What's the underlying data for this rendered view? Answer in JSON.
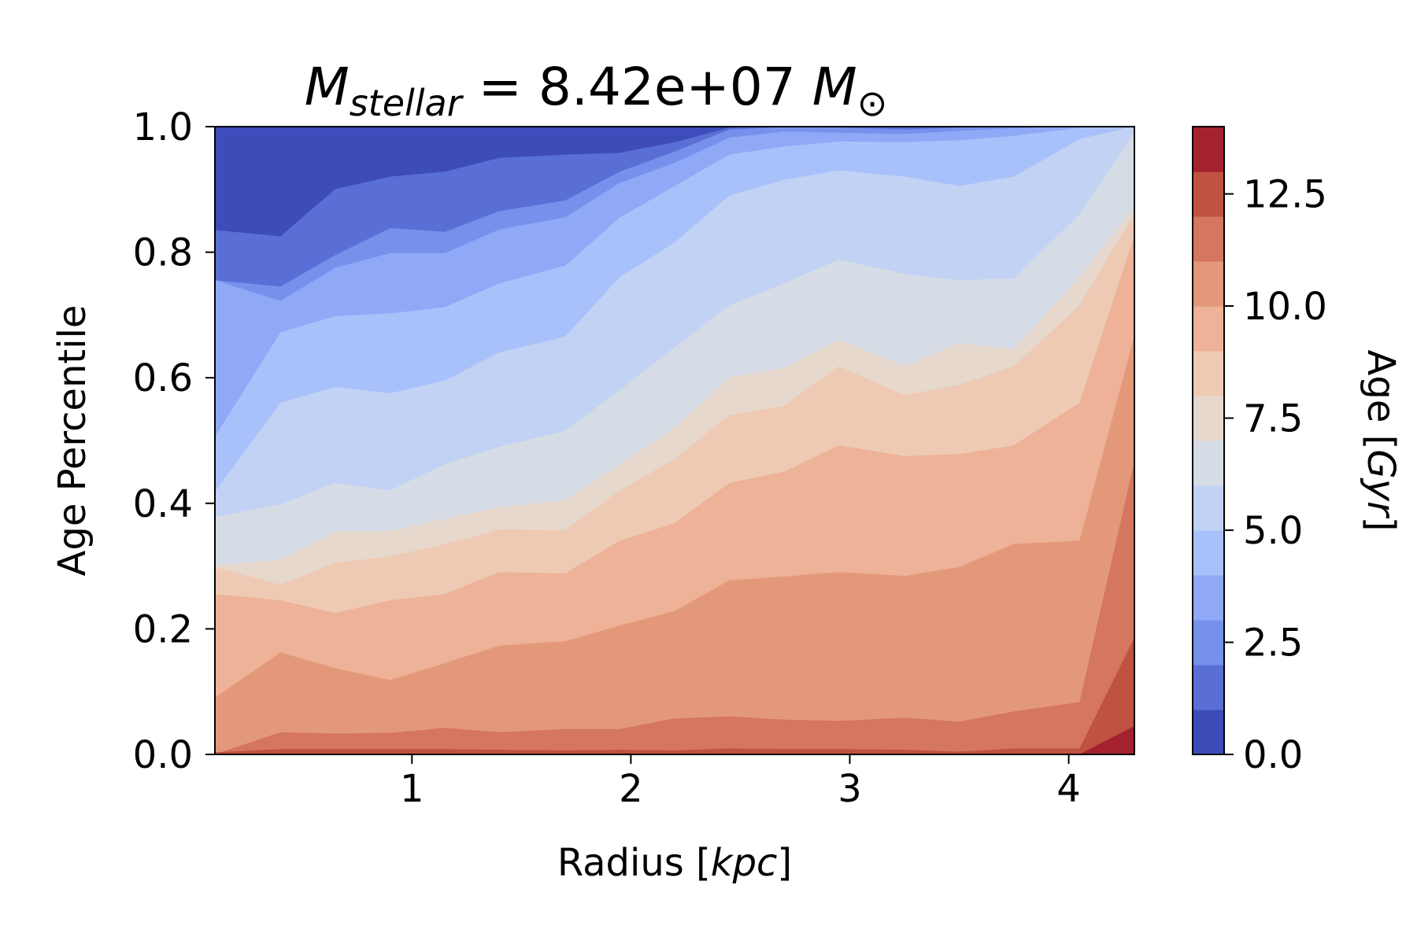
{
  "chart_data": {
    "type": "contour",
    "title": {
      "symbol": "M",
      "subscript": "stellar",
      "equals": " = ",
      "value": "8.42e+07",
      "unit_symbol": "M",
      "unit_subscript": "⊙"
    },
    "xlabel": {
      "main": "Radius [",
      "italic": "kpc",
      "close": "]"
    },
    "ylabel": "Age Percentile",
    "colorbar_label": {
      "main": "Age [",
      "italic": "Gyr",
      "close": "]"
    },
    "xlim": [
      0.1,
      4.3
    ],
    "ylim": [
      0.0,
      1.0
    ],
    "xticks": [
      1,
      2,
      3,
      4
    ],
    "xtick_labels": [
      "1",
      "2",
      "3",
      "4"
    ],
    "yticks": [
      0.0,
      0.2,
      0.4,
      0.6,
      0.8,
      1.0
    ],
    "ytick_labels": [
      "0.0",
      "0.2",
      "0.4",
      "0.6",
      "0.8",
      "1.0"
    ],
    "colorbar_ticks": [
      0.0,
      2.5,
      5.0,
      7.5,
      10.0,
      12.5
    ],
    "colorbar_tick_labels": [
      "0.0",
      "2.5",
      "5.0",
      "7.5",
      "10.0",
      "12.5"
    ],
    "colorbar_range": [
      0.0,
      14.0
    ],
    "age_levels": [
      0,
      1,
      2,
      3,
      4,
      5,
      6,
      7,
      8,
      9,
      10,
      11,
      12,
      13,
      14
    ],
    "level_colors": [
      "#3d4cb8",
      "#5a6fd6",
      "#7691eb",
      "#8fa9f6",
      "#a9c1fb",
      "#c1d2f4",
      "#d6dce6",
      "#e6d8cc",
      "#eecab4",
      "#edb297",
      "#e4987a",
      "#d57660",
      "#c05242",
      "#a4222f"
    ],
    "x": [
      0.1,
      0.4,
      0.65,
      0.9,
      1.15,
      1.4,
      1.7,
      1.95,
      2.2,
      2.45,
      2.7,
      2.95,
      3.25,
      3.5,
      3.75,
      4.05,
      4.3
    ],
    "contour_boundaries": [
      {
        "age": 12,
        "percentile": [
          0.0,
          0.0,
          0.0,
          0.0,
          0.0,
          0.0,
          0.0,
          0.0,
          0.0,
          0.0,
          0.0,
          0.0,
          0.0,
          0.0,
          0.0,
          0.0,
          0.045
        ]
      },
      {
        "age": 11,
        "percentile": [
          0.003,
          0.008,
          0.008,
          0.008,
          0.008,
          0.007,
          0.006,
          0.007,
          0.006,
          0.009,
          0.008,
          0.008,
          0.007,
          0.004,
          0.009,
          0.009,
          0.185
        ]
      },
      {
        "age": 10,
        "percentile": [
          0.0,
          0.035,
          0.033,
          0.034,
          0.042,
          0.035,
          0.04,
          0.04,
          0.057,
          0.06,
          0.055,
          0.053,
          0.058,
          0.052,
          0.068,
          0.083,
          0.465
        ]
      },
      {
        "age": 9,
        "percentile": [
          0.09,
          0.162,
          0.137,
          0.118,
          0.145,
          0.173,
          0.18,
          0.205,
          0.228,
          0.277,
          0.283,
          0.29,
          0.284,
          0.298,
          0.335,
          0.34,
          0.665
        ]
      },
      {
        "age": 8,
        "percentile": [
          0.255,
          0.245,
          0.225,
          0.245,
          0.255,
          0.29,
          0.288,
          0.34,
          0.368,
          0.432,
          0.45,
          0.492,
          0.475,
          0.478,
          0.492,
          0.56,
          0.825
        ]
      },
      {
        "age": 7,
        "percentile": [
          0.298,
          0.27,
          0.305,
          0.315,
          0.335,
          0.358,
          0.357,
          0.42,
          0.47,
          0.54,
          0.555,
          0.618,
          0.572,
          0.588,
          0.618,
          0.715,
          0.86
        ]
      },
      {
        "age": 6,
        "percentile": [
          0.3,
          0.31,
          0.355,
          0.355,
          0.375,
          0.393,
          0.405,
          0.462,
          0.52,
          0.6,
          0.615,
          0.66,
          0.618,
          0.655,
          0.645,
          0.76,
          0.87
        ]
      },
      {
        "age": 5,
        "percentile": [
          0.378,
          0.398,
          0.432,
          0.42,
          0.462,
          0.49,
          0.515,
          0.58,
          0.648,
          0.715,
          0.75,
          0.788,
          0.765,
          0.755,
          0.758,
          0.86,
          0.99
        ]
      },
      {
        "age": 4,
        "percentile": [
          0.418,
          0.56,
          0.585,
          0.575,
          0.595,
          0.64,
          0.665,
          0.76,
          0.815,
          0.89,
          0.915,
          0.93,
          0.92,
          0.905,
          0.92,
          0.98,
          1.0
        ]
      },
      {
        "age": 3,
        "percentile": [
          0.505,
          0.672,
          0.698,
          0.702,
          0.712,
          0.75,
          0.778,
          0.855,
          0.905,
          0.955,
          0.968,
          0.976,
          0.975,
          0.978,
          0.985,
          0.998,
          1.0
        ]
      },
      {
        "age": 2,
        "percentile": [
          0.755,
          0.722,
          0.775,
          0.798,
          0.798,
          0.836,
          0.855,
          0.91,
          0.942,
          0.982,
          0.992,
          0.99,
          0.988,
          0.993,
          0.997,
          1.0,
          1.0
        ]
      },
      {
        "age": 1,
        "percentile": [
          0.755,
          0.745,
          0.795,
          0.838,
          0.832,
          0.865,
          0.882,
          0.928,
          0.96,
          0.995,
          0.999,
          0.998,
          0.995,
          0.998,
          0.999,
          1.0,
          1.0
        ]
      },
      {
        "age": 0,
        "percentile": [
          0.835,
          0.825,
          0.9,
          0.92,
          0.928,
          0.95,
          0.955,
          0.958,
          0.975,
          0.998,
          1.0,
          1.0,
          1.0,
          1.0,
          1.0,
          1.0,
          1.0
        ]
      }
    ]
  }
}
